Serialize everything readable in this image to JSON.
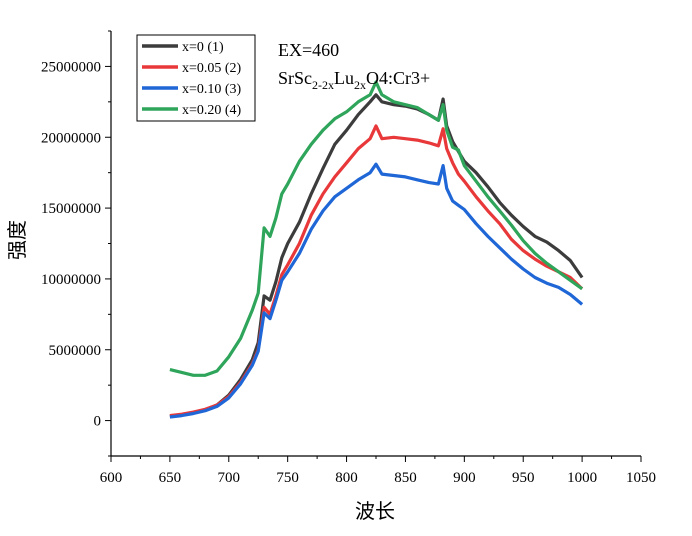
{
  "chart_data": {
    "type": "line",
    "title": "",
    "xlabel": "波长",
    "ylabel": "强度",
    "xlim": [
      600,
      1050
    ],
    "ylim": [
      -2500000,
      27500000
    ],
    "xticks": [
      600,
      650,
      700,
      750,
      800,
      850,
      900,
      950,
      1000,
      1050
    ],
    "xtick_labels": [
      "600",
      "650",
      "700",
      "750",
      "800",
      "850",
      "900",
      "950",
      "1000",
      "1050"
    ],
    "yticks": [
      0,
      5000000,
      10000000,
      15000000,
      20000000,
      25000000
    ],
    "ytick_labels": [
      "0",
      "5000000",
      "10000000",
      "15000000",
      "20000000",
      "25000000"
    ],
    "grid": false,
    "legend_position": "top-left",
    "annotation": {
      "line1": "EX=460",
      "line2_parts": [
        "SrSc",
        "2-2x",
        "Lu",
        "2x",
        "O4:Cr3+"
      ]
    },
    "series": [
      {
        "name": "x=0    (1)",
        "color": "#3c3c3c",
        "x": [
          650,
          660,
          670,
          680,
          690,
          700,
          710,
          720,
          725,
          730,
          735,
          740,
          745,
          750,
          760,
          770,
          780,
          790,
          800,
          810,
          820,
          825,
          830,
          840,
          850,
          860,
          870,
          878,
          882,
          885,
          890,
          895,
          900,
          910,
          920,
          930,
          940,
          950,
          960,
          970,
          980,
          990,
          1000
        ],
        "y": [
          300000,
          400000,
          550000,
          750000,
          1100000,
          1800000,
          2900000,
          4300000,
          5500000,
          8800000,
          8500000,
          9800000,
          11500000,
          12500000,
          14000000,
          16000000,
          17800000,
          19500000,
          20500000,
          21600000,
          22500000,
          23000000,
          22500000,
          22300000,
          22200000,
          22000000,
          21600000,
          21200000,
          22700000,
          20800000,
          19700000,
          19000000,
          18300000,
          17500000,
          16500000,
          15400000,
          14500000,
          13700000,
          13000000,
          12600000,
          12000000,
          11300000,
          10100000
        ]
      },
      {
        "name": "x=0.05 (2)",
        "color": "#e8383a",
        "x": [
          650,
          660,
          670,
          680,
          690,
          700,
          710,
          720,
          725,
          730,
          735,
          740,
          745,
          750,
          760,
          770,
          780,
          790,
          800,
          810,
          820,
          825,
          830,
          840,
          850,
          860,
          870,
          878,
          882,
          885,
          890,
          895,
          900,
          910,
          920,
          930,
          940,
          950,
          960,
          970,
          980,
          990,
          1000
        ],
        "y": [
          350000,
          450000,
          600000,
          800000,
          1100000,
          1700000,
          2700000,
          4000000,
          5000000,
          8000000,
          7500000,
          8800000,
          10300000,
          11000000,
          12500000,
          14500000,
          16000000,
          17200000,
          18200000,
          19200000,
          19900000,
          20800000,
          19900000,
          20000000,
          19900000,
          19800000,
          19600000,
          19400000,
          20600000,
          19200000,
          18200000,
          17400000,
          16900000,
          15800000,
          14800000,
          13900000,
          12800000,
          12000000,
          11400000,
          10900000,
          10500000,
          10100000,
          9300000
        ]
      },
      {
        "name": "x=0.10 (3)",
        "color": "#1f66d6",
        "x": [
          650,
          660,
          670,
          680,
          690,
          700,
          710,
          720,
          725,
          730,
          735,
          740,
          745,
          750,
          760,
          770,
          780,
          790,
          800,
          810,
          820,
          825,
          830,
          840,
          850,
          860,
          870,
          878,
          882,
          885,
          890,
          895,
          900,
          910,
          920,
          930,
          940,
          950,
          960,
          970,
          980,
          990,
          1000
        ],
        "y": [
          250000,
          350000,
          500000,
          700000,
          1000000,
          1600000,
          2600000,
          3900000,
          4900000,
          7600000,
          7200000,
          8500000,
          9900000,
          10500000,
          11800000,
          13500000,
          14800000,
          15800000,
          16400000,
          17000000,
          17500000,
          18100000,
          17400000,
          17300000,
          17200000,
          17000000,
          16800000,
          16700000,
          18000000,
          16400000,
          15500000,
          15200000,
          14900000,
          13900000,
          13000000,
          12200000,
          11400000,
          10700000,
          10100000,
          9700000,
          9400000,
          8900000,
          8200000
        ]
      },
      {
        "name": "x=0.20 (4)",
        "color": "#2ea55a",
        "x": [
          650,
          660,
          670,
          680,
          690,
          700,
          710,
          720,
          725,
          730,
          735,
          740,
          745,
          750,
          760,
          770,
          780,
          790,
          800,
          810,
          820,
          825,
          830,
          840,
          850,
          860,
          870,
          878,
          882,
          885,
          890,
          895,
          900,
          910,
          920,
          930,
          940,
          950,
          960,
          970,
          980,
          990,
          1000
        ],
        "y": [
          3600000,
          3400000,
          3200000,
          3200000,
          3500000,
          4500000,
          5800000,
          7800000,
          9000000,
          13600000,
          13000000,
          14300000,
          16000000,
          16700000,
          18300000,
          19500000,
          20500000,
          21300000,
          21800000,
          22500000,
          23000000,
          23900000,
          23000000,
          22500000,
          22300000,
          22100000,
          21600000,
          21200000,
          22300000,
          20500000,
          19300000,
          19100000,
          18000000,
          16900000,
          15800000,
          14800000,
          13800000,
          12700000,
          11800000,
          11100000,
          10500000,
          9900000,
          9300000
        ]
      }
    ]
  }
}
